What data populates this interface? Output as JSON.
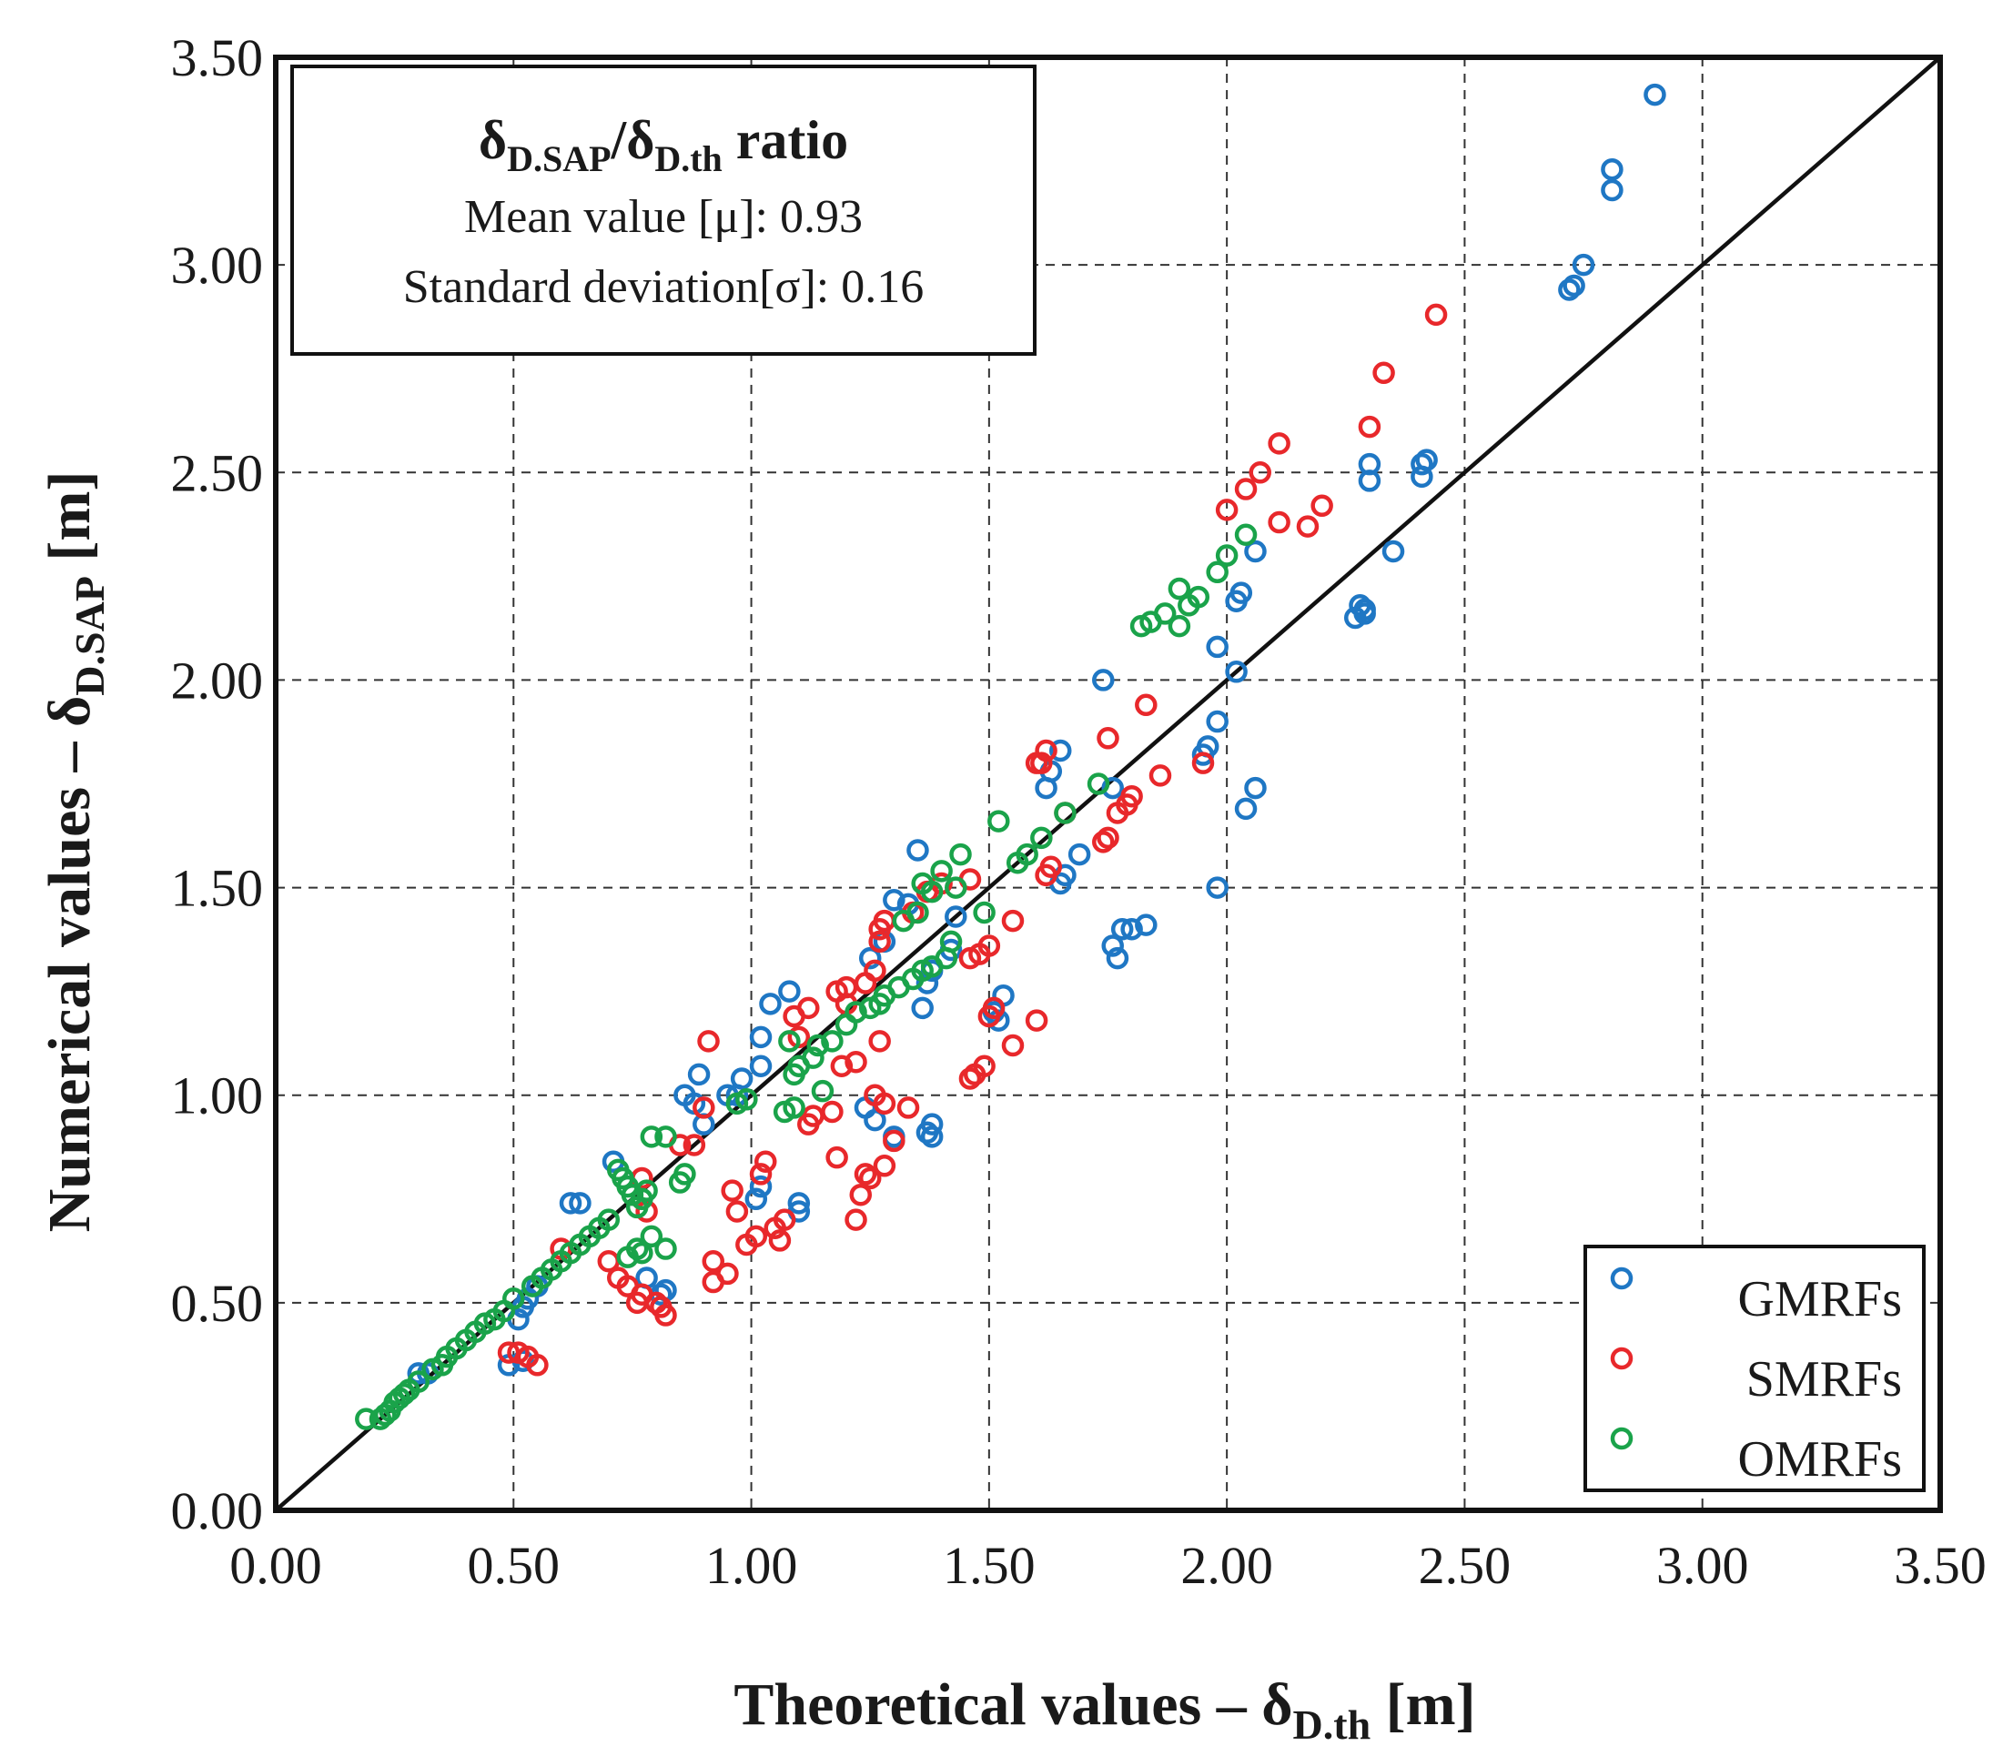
{
  "chart_data": {
    "type": "scatter",
    "xlabel": {
      "main": "Theoretical values – δ",
      "sub": "D.th",
      "unit": " [m]"
    },
    "ylabel": {
      "main": "Numerical values – δ",
      "sub": "D.SAP",
      "unit": " [m]"
    },
    "xlim": [
      0,
      3.5
    ],
    "ylim": [
      0,
      3.5
    ],
    "xticks": [
      "0.00",
      "0.50",
      "1.00",
      "1.50",
      "2.00",
      "2.50",
      "3.00",
      "3.50"
    ],
    "yticks": [
      "0.00",
      "0.50",
      "1.00",
      "1.50",
      "2.00",
      "2.50",
      "3.00",
      "3.50"
    ],
    "grid": true,
    "reference_line": {
      "from": [
        0,
        0
      ],
      "to": [
        3.5,
        3.5
      ]
    },
    "legend_position": "bottom-right",
    "annotation": {
      "title_main1": "δ",
      "title_sub1": "D.SAP",
      "title_slash": "/δ",
      "title_sub2": "D.th",
      "title_end": "  ratio",
      "line1": "Mean value [μ]: 0.93",
      "line2": "Standard deviation[σ]: 0.16"
    },
    "series": [
      {
        "name": "GMRFs",
        "color": "#1f77c4",
        "points": [
          [
            2.9,
            3.41
          ],
          [
            2.81,
            3.23
          ],
          [
            2.81,
            3.18
          ],
          [
            2.75,
            3.0
          ],
          [
            2.73,
            2.95
          ],
          [
            2.72,
            2.94
          ],
          [
            2.42,
            2.53
          ],
          [
            2.41,
            2.52
          ],
          [
            2.41,
            2.49
          ],
          [
            2.3,
            2.52
          ],
          [
            2.3,
            2.48
          ],
          [
            2.35,
            2.31
          ],
          [
            2.29,
            2.17
          ],
          [
            2.28,
            2.18
          ],
          [
            2.27,
            2.15
          ],
          [
            2.29,
            2.16
          ],
          [
            2.06,
            2.31
          ],
          [
            2.03,
            2.21
          ],
          [
            2.02,
            2.19
          ],
          [
            2.02,
            2.02
          ],
          [
            1.98,
            2.08
          ],
          [
            1.98,
            1.9
          ],
          [
            1.96,
            1.84
          ],
          [
            1.95,
            1.82
          ],
          [
            2.06,
            1.74
          ],
          [
            2.04,
            1.69
          ],
          [
            1.98,
            1.5
          ],
          [
            1.74,
            2.0
          ],
          [
            1.76,
            1.74
          ],
          [
            1.69,
            1.58
          ],
          [
            1.66,
            1.53
          ],
          [
            1.65,
            1.51
          ],
          [
            1.65,
            1.83
          ],
          [
            1.63,
            1.78
          ],
          [
            1.62,
            1.74
          ],
          [
            1.78,
            1.4
          ],
          [
            1.76,
            1.36
          ],
          [
            1.77,
            1.33
          ],
          [
            1.83,
            1.41
          ],
          [
            1.8,
            1.4
          ],
          [
            1.53,
            1.24
          ],
          [
            1.51,
            1.2
          ],
          [
            1.52,
            1.18
          ],
          [
            1.43,
            1.43
          ],
          [
            1.42,
            1.35
          ],
          [
            1.38,
            1.3
          ],
          [
            1.37,
            1.27
          ],
          [
            1.36,
            1.21
          ],
          [
            1.35,
            1.59
          ],
          [
            1.33,
            1.46
          ],
          [
            1.3,
            1.47
          ],
          [
            1.28,
            1.37
          ],
          [
            1.25,
            1.33
          ],
          [
            1.38,
            0.93
          ],
          [
            1.38,
            0.9
          ],
          [
            1.37,
            0.91
          ],
          [
            1.3,
            0.9
          ],
          [
            1.24,
            0.97
          ],
          [
            1.26,
            0.94
          ],
          [
            1.1,
            0.72
          ],
          [
            1.1,
            0.74
          ],
          [
            1.08,
            1.25
          ],
          [
            1.04,
            1.22
          ],
          [
            1.02,
            1.14
          ],
          [
            1.02,
            1.07
          ],
          [
            0.98,
            1.04
          ],
          [
            0.97,
            1.0
          ],
          [
            0.95,
            1.0
          ],
          [
            0.89,
            1.05
          ],
          [
            0.86,
            1.0
          ],
          [
            0.88,
            0.98
          ],
          [
            0.9,
            0.93
          ],
          [
            1.02,
            0.78
          ],
          [
            1.01,
            0.75
          ],
          [
            0.82,
            0.53
          ],
          [
            0.81,
            0.52
          ],
          [
            0.78,
            0.56
          ],
          [
            0.71,
            0.84
          ],
          [
            0.64,
            0.74
          ],
          [
            0.62,
            0.74
          ],
          [
            0.55,
            0.54
          ],
          [
            0.53,
            0.51
          ],
          [
            0.52,
            0.49
          ],
          [
            0.51,
            0.46
          ],
          [
            0.52,
            0.36
          ],
          [
            0.49,
            0.35
          ],
          [
            0.3,
            0.33
          ],
          [
            0.32,
            0.33
          ]
        ]
      },
      {
        "name": "SMRFs",
        "color": "#e8282b",
        "points": [
          [
            2.44,
            2.88
          ],
          [
            2.33,
            2.74
          ],
          [
            2.3,
            2.61
          ],
          [
            2.11,
            2.57
          ],
          [
            2.07,
            2.5
          ],
          [
            2.04,
            2.46
          ],
          [
            2.0,
            2.41
          ],
          [
            2.11,
            2.38
          ],
          [
            2.2,
            2.42
          ],
          [
            2.17,
            2.37
          ],
          [
            1.83,
            1.94
          ],
          [
            1.75,
            1.86
          ],
          [
            1.86,
            1.77
          ],
          [
            1.8,
            1.72
          ],
          [
            1.79,
            1.7
          ],
          [
            1.77,
            1.68
          ],
          [
            1.75,
            1.62
          ],
          [
            1.74,
            1.61
          ],
          [
            1.95,
            1.8
          ],
          [
            1.66,
            1.68
          ],
          [
            1.62,
            1.83
          ],
          [
            1.61,
            1.8
          ],
          [
            1.6,
            1.8
          ],
          [
            1.63,
            1.55
          ],
          [
            1.62,
            1.53
          ],
          [
            1.55,
            1.42
          ],
          [
            1.55,
            1.12
          ],
          [
            1.6,
            1.18
          ],
          [
            1.51,
            1.21
          ],
          [
            1.5,
            1.19
          ],
          [
            1.49,
            1.07
          ],
          [
            1.47,
            1.05
          ],
          [
            1.46,
            1.04
          ],
          [
            1.5,
            1.36
          ],
          [
            1.48,
            1.34
          ],
          [
            1.46,
            1.33
          ],
          [
            1.46,
            1.52
          ],
          [
            1.4,
            1.51
          ],
          [
            1.37,
            1.49
          ],
          [
            1.34,
            1.44
          ],
          [
            1.28,
            1.42
          ],
          [
            1.27,
            1.4
          ],
          [
            1.27,
            1.37
          ],
          [
            1.26,
            1.3
          ],
          [
            1.24,
            1.27
          ],
          [
            1.2,
            1.26
          ],
          [
            1.18,
            1.25
          ],
          [
            1.2,
            1.22
          ],
          [
            1.22,
            1.08
          ],
          [
            1.19,
            1.07
          ],
          [
            1.17,
            0.96
          ],
          [
            1.13,
            0.95
          ],
          [
            1.12,
            0.93
          ],
          [
            1.27,
            1.13
          ],
          [
            1.26,
            1.0
          ],
          [
            1.28,
            0.98
          ],
          [
            1.33,
            0.97
          ],
          [
            1.3,
            0.89
          ],
          [
            1.28,
            0.83
          ],
          [
            1.24,
            0.81
          ],
          [
            1.25,
            0.8
          ],
          [
            1.23,
            0.76
          ],
          [
            1.22,
            0.7
          ],
          [
            1.18,
            0.85
          ],
          [
            1.12,
            1.21
          ],
          [
            1.09,
            1.19
          ],
          [
            1.1,
            1.14
          ],
          [
            1.07,
            0.7
          ],
          [
            1.06,
            0.65
          ],
          [
            1.05,
            0.68
          ],
          [
            1.03,
            0.84
          ],
          [
            1.02,
            0.81
          ],
          [
            1.01,
            0.66
          ],
          [
            0.99,
            0.64
          ],
          [
            0.97,
            0.72
          ],
          [
            0.96,
            0.77
          ],
          [
            0.95,
            0.57
          ],
          [
            0.92,
            0.6
          ],
          [
            0.92,
            0.55
          ],
          [
            0.91,
            1.13
          ],
          [
            0.9,
            0.97
          ],
          [
            0.88,
            0.88
          ],
          [
            0.85,
            0.88
          ],
          [
            0.82,
            0.47
          ],
          [
            0.81,
            0.49
          ],
          [
            0.8,
            0.5
          ],
          [
            0.78,
            0.72
          ],
          [
            0.77,
            0.8
          ],
          [
            0.77,
            0.52
          ],
          [
            0.76,
            0.5
          ],
          [
            0.74,
            0.54
          ],
          [
            0.72,
            0.56
          ],
          [
            0.7,
            0.6
          ],
          [
            0.6,
            0.63
          ],
          [
            0.55,
            0.35
          ],
          [
            0.53,
            0.37
          ],
          [
            0.51,
            0.38
          ],
          [
            0.49,
            0.38
          ]
        ]
      },
      {
        "name": "OMRFs",
        "color": "#1aa34a",
        "points": [
          [
            2.04,
            2.35
          ],
          [
            2.0,
            2.3
          ],
          [
            1.98,
            2.26
          ],
          [
            1.94,
            2.2
          ],
          [
            1.92,
            2.18
          ],
          [
            1.9,
            2.22
          ],
          [
            1.9,
            2.13
          ],
          [
            1.87,
            2.16
          ],
          [
            1.84,
            2.14
          ],
          [
            1.82,
            2.13
          ],
          [
            1.73,
            1.75
          ],
          [
            1.66,
            1.68
          ],
          [
            1.61,
            1.62
          ],
          [
            1.58,
            1.58
          ],
          [
            1.56,
            1.56
          ],
          [
            1.52,
            1.66
          ],
          [
            1.49,
            1.44
          ],
          [
            1.44,
            1.58
          ],
          [
            1.43,
            1.5
          ],
          [
            1.4,
            1.54
          ],
          [
            1.38,
            1.49
          ],
          [
            1.36,
            1.51
          ],
          [
            1.35,
            1.44
          ],
          [
            1.32,
            1.42
          ],
          [
            1.42,
            1.37
          ],
          [
            1.41,
            1.33
          ],
          [
            1.38,
            1.31
          ],
          [
            1.36,
            1.3
          ],
          [
            1.34,
            1.28
          ],
          [
            1.31,
            1.26
          ],
          [
            1.28,
            1.24
          ],
          [
            1.27,
            1.22
          ],
          [
            1.25,
            1.21
          ],
          [
            1.22,
            1.2
          ],
          [
            1.2,
            1.17
          ],
          [
            1.17,
            1.13
          ],
          [
            1.14,
            1.12
          ],
          [
            1.13,
            1.09
          ],
          [
            1.1,
            1.07
          ],
          [
            1.09,
            1.05
          ],
          [
            1.08,
            1.13
          ],
          [
            1.09,
            0.97
          ],
          [
            1.07,
            0.96
          ],
          [
            1.15,
            1.01
          ],
          [
            0.99,
            0.99
          ],
          [
            0.97,
            0.98
          ],
          [
            0.86,
            0.81
          ],
          [
            0.85,
            0.79
          ],
          [
            0.82,
            0.9
          ],
          [
            0.79,
            0.9
          ],
          [
            0.82,
            0.63
          ],
          [
            0.79,
            0.66
          ],
          [
            0.77,
            0.62
          ],
          [
            0.76,
            0.63
          ],
          [
            0.74,
            0.61
          ],
          [
            0.78,
            0.77
          ],
          [
            0.77,
            0.75
          ],
          [
            0.76,
            0.73
          ],
          [
            0.75,
            0.76
          ],
          [
            0.74,
            0.78
          ],
          [
            0.73,
            0.8
          ],
          [
            0.72,
            0.82
          ],
          [
            0.7,
            0.7
          ],
          [
            0.68,
            0.68
          ],
          [
            0.66,
            0.66
          ],
          [
            0.64,
            0.64
          ],
          [
            0.62,
            0.62
          ],
          [
            0.6,
            0.6
          ],
          [
            0.58,
            0.58
          ],
          [
            0.56,
            0.56
          ],
          [
            0.54,
            0.54
          ],
          [
            0.5,
            0.51
          ],
          [
            0.48,
            0.48
          ],
          [
            0.46,
            0.46
          ],
          [
            0.44,
            0.45
          ],
          [
            0.42,
            0.43
          ],
          [
            0.4,
            0.41
          ],
          [
            0.38,
            0.39
          ],
          [
            0.36,
            0.37
          ],
          [
            0.35,
            0.35
          ],
          [
            0.33,
            0.34
          ],
          [
            0.3,
            0.31
          ],
          [
            0.28,
            0.29
          ],
          [
            0.27,
            0.28
          ],
          [
            0.26,
            0.27
          ],
          [
            0.25,
            0.26
          ],
          [
            0.24,
            0.24
          ],
          [
            0.23,
            0.23
          ],
          [
            0.22,
            0.22
          ],
          [
            0.19,
            0.22
          ]
        ]
      }
    ]
  }
}
